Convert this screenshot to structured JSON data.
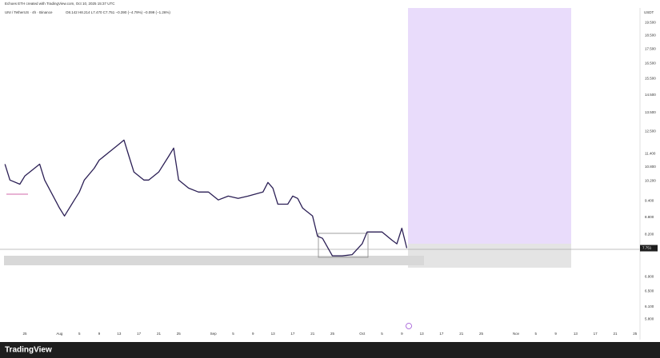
{
  "chart_data": {
    "type": "line",
    "subtitle": "Echoes ETH created with TradingView.com, Oct 10, 2025 15:37 UTC",
    "title": "UNI / TetherUS · 4h · Binance",
    "annotation": "O8.142 H8.214 L7.470 C7.751 −0.390 (−4.79%) −0.099 (−1.26%)",
    "ylabel": "USDT",
    "brand": "TradingView",
    "log_scale": true,
    "grid": false,
    "x": [
      "2025-07-21",
      "2025-07-22",
      "2025-07-24",
      "2025-07-25",
      "2025-07-28",
      "2025-07-29",
      "2025-08-01",
      "2025-08-02",
      "2025-08-04",
      "2025-08-05",
      "2025-08-06",
      "2025-08-08",
      "2025-08-09",
      "2025-08-11",
      "2025-08-13",
      "2025-08-14",
      "2025-08-15",
      "2025-08-16",
      "2025-08-18",
      "2025-08-19",
      "2025-08-21",
      "2025-08-23",
      "2025-08-24",
      "2025-08-25",
      "2025-08-27",
      "2025-08-29",
      "2025-08-31",
      "2025-09-02",
      "2025-09-04",
      "2025-09-06",
      "2025-09-08",
      "2025-09-11",
      "2025-09-12",
      "2025-09-13",
      "2025-09-14",
      "2025-09-16",
      "2025-09-17",
      "2025-09-18",
      "2025-09-19",
      "2025-09-21",
      "2025-09-22",
      "2025-09-23",
      "2025-09-25",
      "2025-09-27",
      "2025-09-29",
      "2025-10-01",
      "2025-10-02",
      "2025-10-04",
      "2025-10-05",
      "2025-10-07",
      "2025-10-08",
      "2025-10-09",
      "2025-10-10"
    ],
    "series": [
      {
        "name": "UNIUSDT",
        "color": "#2b1f55",
        "values": [
          10.93,
          10.24,
          10.07,
          10.41,
          10.93,
          10.24,
          9.13,
          8.84,
          9.44,
          9.75,
          10.24,
          10.75,
          11.11,
          11.48,
          11.86,
          12.06,
          11.29,
          10.58,
          10.24,
          10.24,
          10.58,
          11.29,
          11.67,
          10.24,
          9.91,
          9.75,
          9.75,
          9.44,
          9.59,
          9.5,
          9.59,
          9.75,
          10.14,
          9.91,
          9.28,
          9.28,
          9.59,
          9.5,
          9.13,
          8.84,
          8.14,
          8.07,
          7.51,
          7.51,
          7.55,
          7.89,
          8.28,
          8.28,
          8.28,
          8.01,
          7.89,
          8.41,
          7.751
        ]
      }
    ],
    "xlim": [
      "2025-07-20",
      "2025-11-26"
    ],
    "xticks": [
      {
        "value": "2025-07-25",
        "label": "25"
      },
      {
        "value": "2025-08-01",
        "label": "Aug"
      },
      {
        "value": "2025-08-05",
        "label": "5"
      },
      {
        "value": "2025-08-09",
        "label": "9"
      },
      {
        "value": "2025-08-13",
        "label": "13"
      },
      {
        "value": "2025-08-17",
        "label": "17"
      },
      {
        "value": "2025-08-21",
        "label": "21"
      },
      {
        "value": "2025-08-25",
        "label": "25"
      },
      {
        "value": "2025-09-01",
        "label": "Sep"
      },
      {
        "value": "2025-09-05",
        "label": "5"
      },
      {
        "value": "2025-09-09",
        "label": "9"
      },
      {
        "value": "2025-09-13",
        "label": "13"
      },
      {
        "value": "2025-09-17",
        "label": "17"
      },
      {
        "value": "2025-09-21",
        "label": "21"
      },
      {
        "value": "2025-09-25",
        "label": "25"
      },
      {
        "value": "2025-10-01",
        "label": "Oct"
      },
      {
        "value": "2025-10-05",
        "label": "5"
      },
      {
        "value": "2025-10-09",
        "label": "9"
      },
      {
        "value": "2025-10-13",
        "label": "13"
      },
      {
        "value": "2025-10-17",
        "label": "17"
      },
      {
        "value": "2025-10-21",
        "label": "21"
      },
      {
        "value": "2025-10-25",
        "label": "25"
      },
      {
        "value": "2025-11-01",
        "label": "Nov"
      },
      {
        "value": "2025-11-05",
        "label": "5"
      },
      {
        "value": "2025-11-09",
        "label": "9"
      },
      {
        "value": "2025-11-13",
        "label": "13"
      },
      {
        "value": "2025-11-17",
        "label": "17"
      },
      {
        "value": "2025-11-21",
        "label": "21"
      },
      {
        "value": "2025-11-25",
        "label": "25"
      }
    ],
    "ylim": [
      5.6,
      20.7
    ],
    "yticks": [
      {
        "value": 19.5,
        "label": "19.500"
      },
      {
        "value": 18.5,
        "label": "18.500"
      },
      {
        "value": 17.5,
        "label": "17.500"
      },
      {
        "value": 16.5,
        "label": "16.500"
      },
      {
        "value": 15.5,
        "label": "15.500"
      },
      {
        "value": 14.5,
        "label": "14.500"
      },
      {
        "value": 13.5,
        "label": "13.500"
      },
      {
        "value": 12.5,
        "label": "12.500"
      },
      {
        "value": 11.4,
        "label": "11.400"
      },
      {
        "value": 10.8,
        "label": "10.800"
      },
      {
        "value": 10.2,
        "label": "10.200"
      },
      {
        "value": 9.4,
        "label": "9.400"
      },
      {
        "value": 8.8,
        "label": "8.800"
      },
      {
        "value": 8.2,
        "label": "8.200"
      },
      {
        "value": 6.9,
        "label": "6.900"
      },
      {
        "value": 6.5,
        "label": "6.500"
      },
      {
        "value": 6.1,
        "label": "6.100"
      },
      {
        "value": 5.8,
        "label": "5.800"
      }
    ]
  }
}
